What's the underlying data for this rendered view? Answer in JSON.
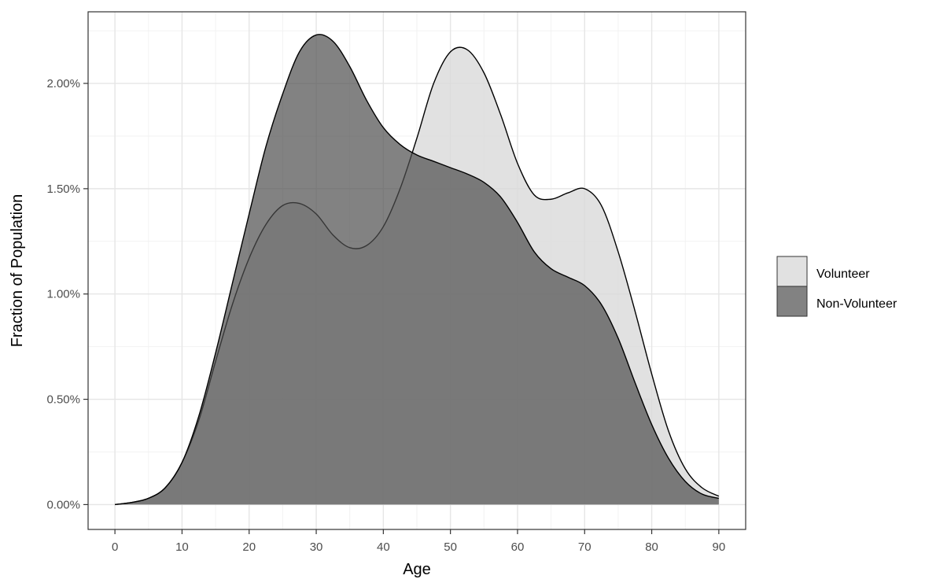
{
  "chart_data": {
    "type": "area",
    "xlabel": "Age",
    "ylabel": "Fraction of Population",
    "xlim": [
      -4,
      94
    ],
    "ylim": [
      -0.118,
      2.34
    ],
    "x_ticks": [
      0,
      10,
      20,
      30,
      40,
      50,
      60,
      70,
      80,
      90
    ],
    "x_tick_labels": [
      "0",
      "10",
      "20",
      "30",
      "40",
      "50",
      "60",
      "70",
      "80",
      "90"
    ],
    "x_minor_ticks": [
      5,
      15,
      25,
      35,
      45,
      55,
      65,
      75,
      85
    ],
    "y_ticks": [
      0,
      0.5,
      1.0,
      1.5,
      2.0
    ],
    "y_tick_labels": [
      "0.00%",
      "0.50%",
      "1.00%",
      "1.50%",
      "2.00%"
    ],
    "y_minor_ticks": [
      0.25,
      0.75,
      1.25,
      1.75,
      2.25
    ],
    "grid": true,
    "legend": "right",
    "x": [
      0,
      2.5,
      5,
      7.5,
      10,
      12.5,
      15,
      17.5,
      20,
      22.5,
      25,
      27.5,
      30,
      32.5,
      35,
      37.5,
      40,
      42.5,
      45,
      47.5,
      50,
      52.5,
      55,
      57.5,
      60,
      62.5,
      65,
      67.5,
      70,
      72.5,
      75,
      77.5,
      80,
      82.5,
      85,
      87.5,
      90
    ],
    "series": [
      {
        "name": "Volunteer",
        "color": "#d9d9d9",
        "opacity": 0.8,
        "values": [
          0.0,
          0.01,
          0.03,
          0.08,
          0.2,
          0.4,
          0.68,
          0.95,
          1.17,
          1.33,
          1.42,
          1.43,
          1.38,
          1.28,
          1.22,
          1.23,
          1.32,
          1.5,
          1.74,
          2.0,
          2.15,
          2.16,
          2.05,
          1.85,
          1.62,
          1.47,
          1.45,
          1.48,
          1.5,
          1.42,
          1.2,
          0.92,
          0.62,
          0.35,
          0.17,
          0.08,
          0.04
        ]
      },
      {
        "name": "Non-Volunteer",
        "color": "#4d4d4d",
        "opacity": 0.7,
        "values": [
          0.0,
          0.01,
          0.03,
          0.08,
          0.2,
          0.42,
          0.72,
          1.05,
          1.38,
          1.7,
          1.95,
          2.15,
          2.23,
          2.2,
          2.08,
          1.92,
          1.79,
          1.71,
          1.66,
          1.63,
          1.6,
          1.57,
          1.53,
          1.46,
          1.34,
          1.2,
          1.12,
          1.08,
          1.04,
          0.95,
          0.79,
          0.58,
          0.38,
          0.22,
          0.11,
          0.05,
          0.03
        ]
      }
    ]
  }
}
